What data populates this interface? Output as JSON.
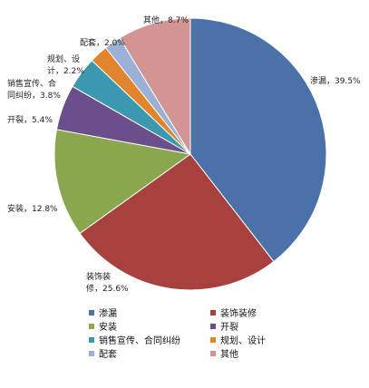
{
  "chart_data": {
    "type": "pie",
    "title": "",
    "start_angle_deg": 0,
    "direction": "clockwise",
    "slices": [
      {
        "name": "渗漏",
        "value": 39.5,
        "color": "#4A72A8",
        "label_lines": [
          "渗漏，39.5%"
        ]
      },
      {
        "name": "装饰装修",
        "value": 25.6,
        "color": "#A8403D",
        "label_lines": [
          "装饰装",
          "修，25.6%"
        ]
      },
      {
        "name": "安装",
        "value": 12.8,
        "color": "#8BA74E",
        "label_lines": [
          "安装，12.8%"
        ]
      },
      {
        "name": "开裂",
        "value": 5.4,
        "color": "#6B4E8C",
        "label_lines": [
          "开裂，5.4%"
        ]
      },
      {
        "name": "销售宣传、合同纠纷",
        "value": 3.8,
        "color": "#3C98AE",
        "label_lines": [
          "销售宣传、合",
          "同纠纷，3.8%"
        ]
      },
      {
        "name": "规划、设计",
        "value": 2.2,
        "color": "#E0852E",
        "label_lines": [
          "规划、设",
          "计，2.2%"
        ]
      },
      {
        "name": "配套",
        "value": 2.0,
        "color": "#9BB0D6",
        "label_lines": [
          "配套，2.0%"
        ]
      },
      {
        "name": "其他",
        "value": 8.7,
        "color": "#D39593",
        "label_lines": [
          "其他，8.7%"
        ]
      }
    ],
    "legend_position": "bottom"
  }
}
